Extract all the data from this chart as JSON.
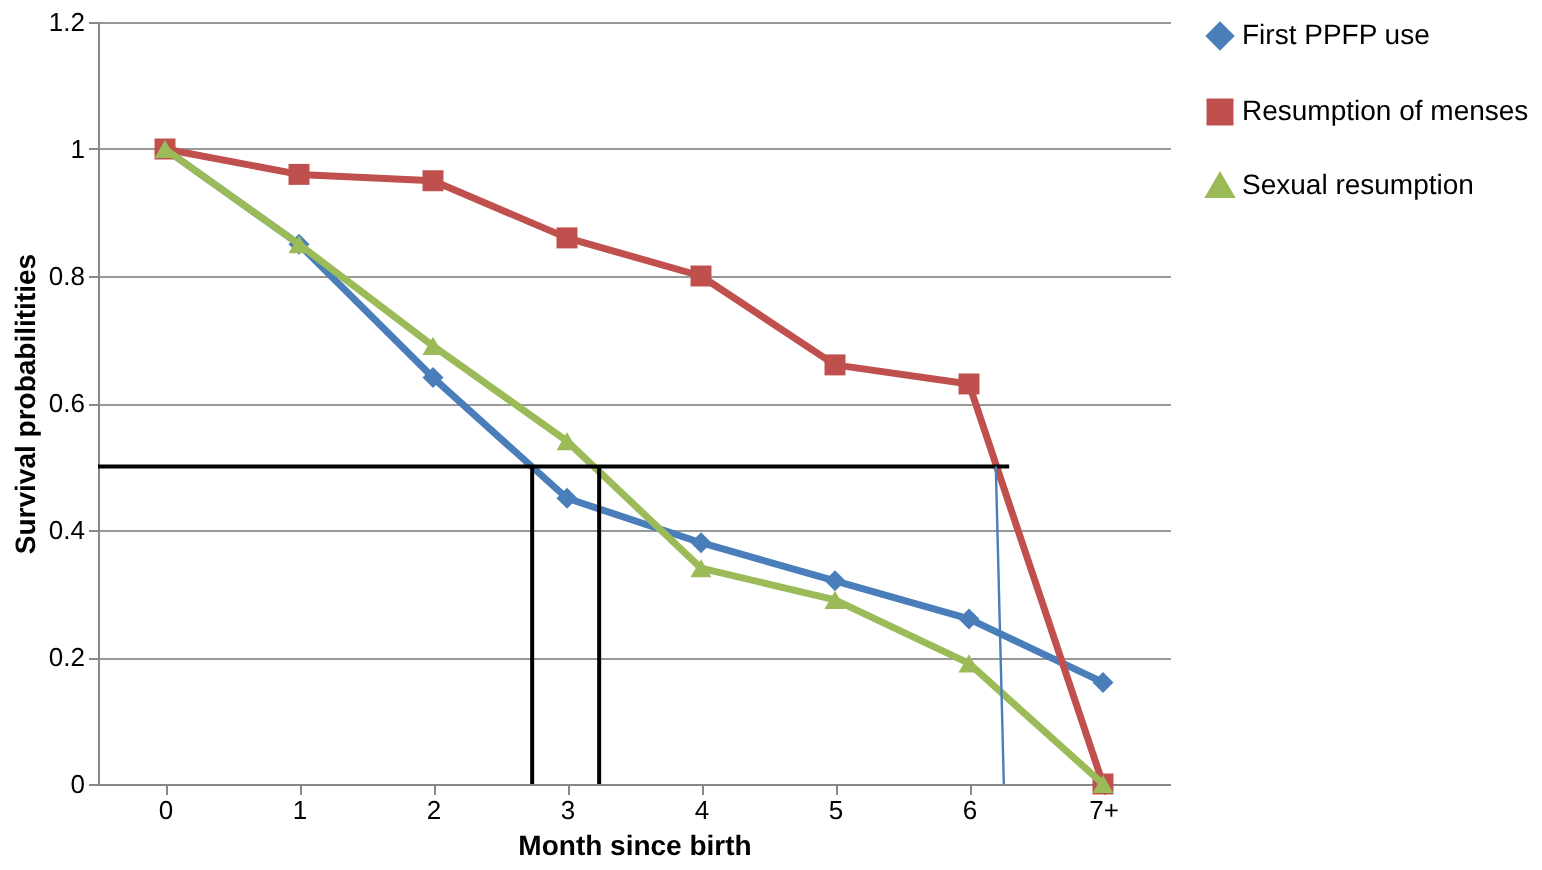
{
  "chart_data": {
    "type": "line",
    "xlabel": "Month since birth",
    "ylabel": "Survival probabilitities",
    "x": [
      0,
      1,
      2,
      3,
      4,
      5,
      6,
      7
    ],
    "xlim": [
      -0.5,
      7.5
    ],
    "xticks": [
      0,
      1,
      2,
      3,
      4,
      5,
      6,
      {
        "value": 7,
        "label": "7+"
      }
    ],
    "ylim": [
      0,
      1.2
    ],
    "yticks": [
      0,
      {
        "value": 0.2,
        "label": "0.2"
      },
      {
        "value": 0.4,
        "label": "0.4"
      },
      {
        "value": 0.6,
        "label": "0.6"
      },
      {
        "value": 0.8,
        "label": "0.8"
      },
      1,
      {
        "value": 1.2,
        "label": "1.2"
      }
    ],
    "grid": "y",
    "legend": "right",
    "series": [
      {
        "name": "First PPFP use",
        "color": "#4a7ebb",
        "marker": "diamond",
        "values": [
          1,
          0.85,
          0.64,
          0.45,
          0.38,
          0.32,
          0.26,
          0.16
        ]
      },
      {
        "name": "Resumption of menses",
        "color": "#c0504d",
        "marker": "square",
        "values": [
          1,
          0.96,
          0.95,
          0.86,
          0.8,
          0.66,
          0.63,
          0
        ]
      },
      {
        "name": "Sexual resumption",
        "color": "#9bbb59",
        "marker": "triangle",
        "values": [
          1,
          0.85,
          0.69,
          0.54,
          0.34,
          0.29,
          0.19,
          0
        ]
      },
      {
        "color": "#000000",
        "marker": "none",
        "x": [
          -0.5,
          6.3
        ],
        "values": [
          0.5,
          0.5
        ]
      },
      {
        "color": "#000000",
        "marker": "none",
        "x": [
          2.74,
          2.74
        ],
        "values": [
          0.5,
          0
        ]
      },
      {
        "color": "#000000",
        "marker": "none",
        "x": [
          3.24,
          3.24
        ],
        "values": [
          0.5,
          0
        ]
      },
      {
        "color": "#4a7ebb",
        "marker": "none",
        "x": [
          6.2,
          6.26
        ],
        "values": [
          0.5,
          0
        ]
      }
    ]
  }
}
